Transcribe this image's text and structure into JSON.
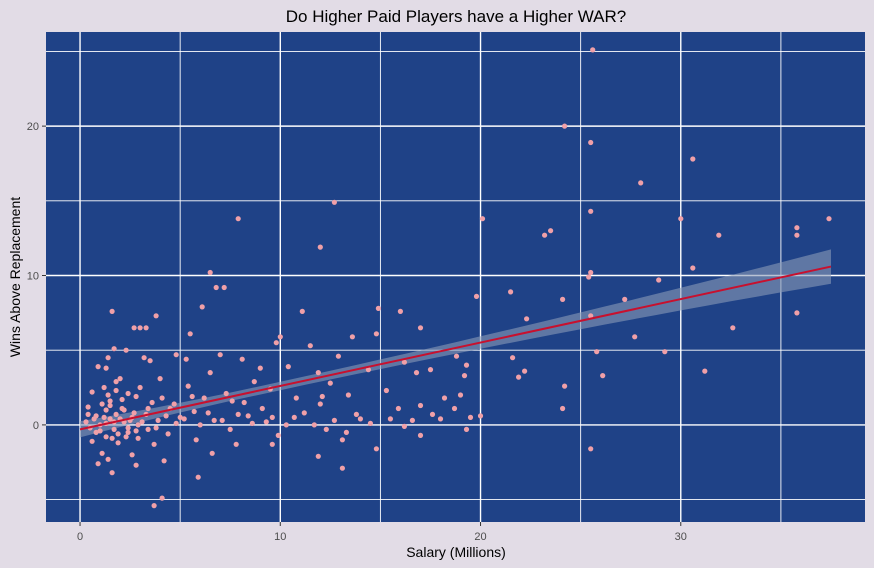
{
  "chart_data": {
    "type": "scatter",
    "title": "Do Higher Paid Players have a Higher WAR?",
    "xlabel": "Salary (Millions)",
    "ylabel": "Wins Above Replacement",
    "xlim": [
      -1.7,
      39.2
    ],
    "ylim": [
      -6.5,
      26.3
    ],
    "x_ticks": [
      0,
      10,
      20,
      30
    ],
    "y_ticks": [
      0,
      10,
      20
    ],
    "x_minor": [
      5,
      15,
      25,
      35
    ],
    "y_minor": [
      -5,
      5,
      15,
      25
    ],
    "grid": true,
    "legend": "none",
    "colors": {
      "panel": "#1f4287",
      "grid": "#ffffff",
      "point": "#f0a0a8",
      "fit_line": "#c8102e",
      "ribbon": "#8a9bb8"
    },
    "points": [
      [
        25.6,
        25.1
      ],
      [
        24.2,
        20.0
      ],
      [
        25.5,
        18.9
      ],
      [
        30.6,
        17.8
      ],
      [
        28.0,
        16.2
      ],
      [
        12.7,
        14.9
      ],
      [
        7.9,
        13.8
      ],
      [
        20.1,
        13.8
      ],
      [
        30.0,
        13.8
      ],
      [
        37.4,
        13.8
      ],
      [
        25.5,
        14.3
      ],
      [
        35.8,
        13.2
      ],
      [
        35.8,
        12.7
      ],
      [
        23.5,
        13.0
      ],
      [
        23.2,
        12.7
      ],
      [
        31.9,
        12.7
      ],
      [
        12.0,
        11.9
      ],
      [
        6.5,
        10.2
      ],
      [
        25.5,
        10.2
      ],
      [
        25.4,
        9.9
      ],
      [
        30.6,
        10.5
      ],
      [
        28.9,
        9.7
      ],
      [
        6.8,
        9.2
      ],
      [
        7.2,
        9.2
      ],
      [
        21.5,
        8.9
      ],
      [
        19.8,
        8.6
      ],
      [
        24.1,
        8.4
      ],
      [
        27.2,
        8.4
      ],
      [
        6.1,
        7.9
      ],
      [
        14.9,
        7.8
      ],
      [
        16.0,
        7.6
      ],
      [
        11.1,
        7.6
      ],
      [
        1.6,
        7.6
      ],
      [
        35.8,
        7.5
      ],
      [
        3.8,
        7.3
      ],
      [
        25.5,
        7.3
      ],
      [
        22.3,
        7.1
      ],
      [
        3.3,
        6.5
      ],
      [
        3.0,
        6.5
      ],
      [
        2.7,
        6.5
      ],
      [
        32.6,
        6.5
      ],
      [
        17.0,
        6.5
      ],
      [
        14.8,
        6.1
      ],
      [
        5.5,
        6.1
      ],
      [
        10.0,
        5.9
      ],
      [
        27.7,
        5.9
      ],
      [
        13.6,
        5.9
      ],
      [
        9.8,
        5.5
      ],
      [
        11.5,
        5.3
      ],
      [
        1.7,
        5.1
      ],
      [
        2.3,
        5.0
      ],
      [
        25.8,
        4.9
      ],
      [
        29.2,
        4.9
      ],
      [
        4.8,
        4.7
      ],
      [
        7.0,
        4.7
      ],
      [
        12.9,
        4.6
      ],
      [
        18.8,
        4.6
      ],
      [
        21.6,
        4.5
      ],
      [
        3.2,
        4.5
      ],
      [
        1.4,
        4.5
      ],
      [
        3.5,
        4.3
      ],
      [
        5.3,
        4.4
      ],
      [
        8.1,
        4.4
      ],
      [
        16.2,
        4.2
      ],
      [
        19.3,
        4.0
      ],
      [
        0.9,
        3.9
      ],
      [
        1.3,
        3.8
      ],
      [
        9.0,
        3.8
      ],
      [
        10.4,
        3.9
      ],
      [
        14.4,
        3.7
      ],
      [
        17.5,
        3.7
      ],
      [
        22.2,
        3.6
      ],
      [
        31.2,
        3.6
      ],
      [
        6.5,
        3.5
      ],
      [
        11.9,
        3.5
      ],
      [
        16.8,
        3.5
      ],
      [
        26.1,
        3.3
      ],
      [
        19.2,
        3.3
      ],
      [
        21.9,
        3.2
      ],
      [
        2.0,
        3.1
      ],
      [
        4.0,
        3.1
      ],
      [
        1.8,
        2.9
      ],
      [
        8.7,
        2.9
      ],
      [
        12.5,
        2.8
      ],
      [
        24.2,
        2.6
      ],
      [
        5.4,
        2.6
      ],
      [
        3.0,
        2.5
      ],
      [
        1.2,
        2.5
      ],
      [
        9.5,
        2.4
      ],
      [
        15.3,
        2.3
      ],
      [
        0.6,
        2.2
      ],
      [
        2.4,
        2.1
      ],
      [
        7.3,
        2.1
      ],
      [
        13.4,
        2.0
      ],
      [
        19.0,
        2.0
      ],
      [
        2.8,
        1.9
      ],
      [
        4.1,
        1.8
      ],
      [
        6.2,
        1.8
      ],
      [
        10.8,
        1.8
      ],
      [
        18.2,
        1.8
      ],
      [
        1.5,
        1.6
      ],
      [
        3.6,
        1.5
      ],
      [
        8.2,
        1.5
      ],
      [
        12.0,
        1.4
      ],
      [
        17.0,
        1.3
      ],
      [
        0.4,
        1.2
      ],
      [
        2.1,
        1.1
      ],
      [
        4.5,
        1.1
      ],
      [
        9.1,
        1.1
      ],
      [
        15.9,
        1.1
      ],
      [
        24.1,
        1.1
      ],
      [
        1.3,
        1.0
      ],
      [
        5.7,
        0.9
      ],
      [
        11.2,
        0.8
      ],
      [
        0.4,
        0.7
      ],
      [
        1.8,
        0.7
      ],
      [
        3.3,
        0.7
      ],
      [
        7.9,
        0.7
      ],
      [
        13.8,
        0.7
      ],
      [
        17.6,
        0.7
      ],
      [
        2.6,
        0.5
      ],
      [
        5.0,
        0.5
      ],
      [
        9.6,
        0.5
      ],
      [
        19.5,
        0.5
      ],
      [
        0.7,
        0.4
      ],
      [
        1.5,
        0.4
      ],
      [
        3.9,
        0.3
      ],
      [
        6.7,
        0.3
      ],
      [
        12.7,
        0.3
      ],
      [
        0.3,
        0.2
      ],
      [
        2.2,
        0.2
      ],
      [
        4.8,
        0.1
      ],
      [
        8.6,
        0.1
      ],
      [
        14.5,
        0.1
      ],
      [
        1.0,
        0.0
      ],
      [
        2.9,
        0.0
      ],
      [
        6.0,
        0.0
      ],
      [
        10.3,
        0.0
      ],
      [
        16.2,
        -0.1
      ],
      [
        0.5,
        -0.2
      ],
      [
        1.7,
        -0.3
      ],
      [
        3.4,
        -0.3
      ],
      [
        7.5,
        -0.3
      ],
      [
        12.3,
        -0.3
      ],
      [
        19.3,
        -0.3
      ],
      [
        0.8,
        -0.5
      ],
      [
        2.4,
        -0.5
      ],
      [
        4.4,
        -0.6
      ],
      [
        9.9,
        -0.7
      ],
      [
        17.0,
        -0.7
      ],
      [
        1.3,
        -0.8
      ],
      [
        2.9,
        -0.9
      ],
      [
        5.8,
        -1.0
      ],
      [
        13.1,
        -1.0
      ],
      [
        0.6,
        -1.1
      ],
      [
        1.9,
        -1.2
      ],
      [
        3.7,
        -1.3
      ],
      [
        7.8,
        -1.3
      ],
      [
        9.6,
        -1.3
      ],
      [
        14.8,
        -1.6
      ],
      [
        25.5,
        -1.6
      ],
      [
        1.1,
        -1.9
      ],
      [
        2.6,
        -2.0
      ],
      [
        6.6,
        -1.9
      ],
      [
        11.9,
        -2.1
      ],
      [
        1.4,
        -2.3
      ],
      [
        4.2,
        -2.4
      ],
      [
        0.9,
        -2.6
      ],
      [
        2.8,
        -2.7
      ],
      [
        1.6,
        -3.2
      ],
      [
        5.9,
        -3.5
      ],
      [
        13.1,
        -2.9
      ],
      [
        3.7,
        -5.4
      ],
      [
        4.1,
        -4.9
      ],
      [
        1.2,
        0.5
      ],
      [
        1.5,
        1.3
      ],
      [
        1.7,
        0.2
      ],
      [
        1.9,
        -0.6
      ],
      [
        2.2,
        1.0
      ],
      [
        2.4,
        -0.2
      ],
      [
        2.7,
        0.8
      ],
      [
        1.0,
        -0.4
      ],
      [
        1.3,
        0.1
      ],
      [
        1.6,
        -0.9
      ],
      [
        2.0,
        0.4
      ],
      [
        2.3,
        -0.8
      ],
      [
        0.8,
        0.6
      ],
      [
        1.1,
        1.4
      ],
      [
        1.4,
        2.0
      ],
      [
        1.8,
        2.3
      ],
      [
        2.1,
        1.7
      ],
      [
        2.5,
        0.3
      ],
      [
        2.8,
        -0.4
      ],
      [
        3.1,
        0.2
      ],
      [
        3.4,
        1.1
      ],
      [
        3.8,
        -0.2
      ],
      [
        4.3,
        0.6
      ],
      [
        4.7,
        1.4
      ],
      [
        5.2,
        0.4
      ],
      [
        5.6,
        1.9
      ],
      [
        6.4,
        0.8
      ],
      [
        7.1,
        0.3
      ],
      [
        7.6,
        1.6
      ],
      [
        8.4,
        0.6
      ],
      [
        9.3,
        0.2
      ],
      [
        10.7,
        0.5
      ],
      [
        11.7,
        0.0
      ],
      [
        12.1,
        1.9
      ],
      [
        13.3,
        -0.5
      ],
      [
        14.0,
        0.4
      ],
      [
        15.5,
        0.4
      ],
      [
        16.6,
        0.3
      ],
      [
        18.0,
        0.4
      ],
      [
        18.7,
        1.1
      ],
      [
        20.0,
        0.6
      ]
    ],
    "fit": {
      "x": [
        0,
        37.5
      ],
      "y": [
        -0.3,
        10.6
      ],
      "ribbon_halfwidth": [
        0.28,
        1.15
      ]
    }
  }
}
